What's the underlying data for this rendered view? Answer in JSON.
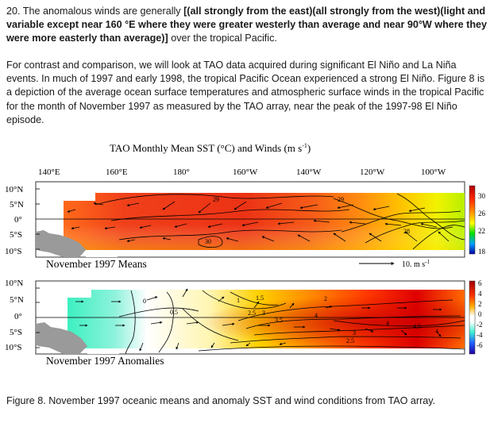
{
  "question": {
    "prefix": "20. The anomalous winds are generally ",
    "choice": "[(all strongly from the east)(all strongly from the west)(light and variable except near 160 °E where they were greater westerly than average and near 90°W where they were more easterly than average)]",
    "suffix": " over the tropical Pacific."
  },
  "paragraph": "For contrast and comparison, we will look at TAO data acquired during significant El Niño and La Niña events. In much of 1997 and early 1998, the tropical Pacific Ocean experienced a strong El Niño. Figure 8 is a depiction of the average ocean surface temperatures and atmospheric surface winds in the tropical Pacific for the month of November 1997 as measured by the TAO array, near the peak of the 1997-98 El Niño episode.",
  "figure": {
    "title_main": "TAO Monthly Mean SST (°C) and Winds (m s",
    "title_exp": "-1",
    "title_end": ")",
    "lon_labels": [
      "140°E",
      "160°E",
      "180°",
      "160°W",
      "140°W",
      "120°W",
      "100°W"
    ],
    "lat_labels": [
      "10°N",
      "5°N",
      "0°",
      "5°S",
      "10°S"
    ],
    "panel1": {
      "label": "November 1997 Means",
      "contours": [
        "29",
        "29",
        "28",
        "30"
      ],
      "colorbar_ticks": [
        "30",
        "26",
        "22",
        "18"
      ],
      "wind_ref_label": "10.  m s",
      "wind_ref_exp": "-1"
    },
    "panel2": {
      "label": "November 1997 Anomalies",
      "contours": [
        "0",
        "0.5",
        "1",
        "1.5",
        "2.5",
        "3",
        "2",
        "3.5",
        "4",
        "2.5",
        "3",
        "4",
        "4.5",
        "4"
      ],
      "colorbar_ticks": [
        "6",
        "4",
        "2",
        "0",
        "-2",
        "-4",
        "-6"
      ]
    }
  },
  "caption": "Figure 8. November 1997 oceanic means and anomaly SST and wind conditions from TAO array.",
  "colors": {
    "sst_warm": "#e8280f",
    "sst_hot": "#ff5a10",
    "sst_mid": "#ffa500",
    "sst_cool": "#ffe000",
    "anom_cold": "#35f2c8",
    "anom_neutral": "#ffffff",
    "land": "#9a9a9a"
  }
}
